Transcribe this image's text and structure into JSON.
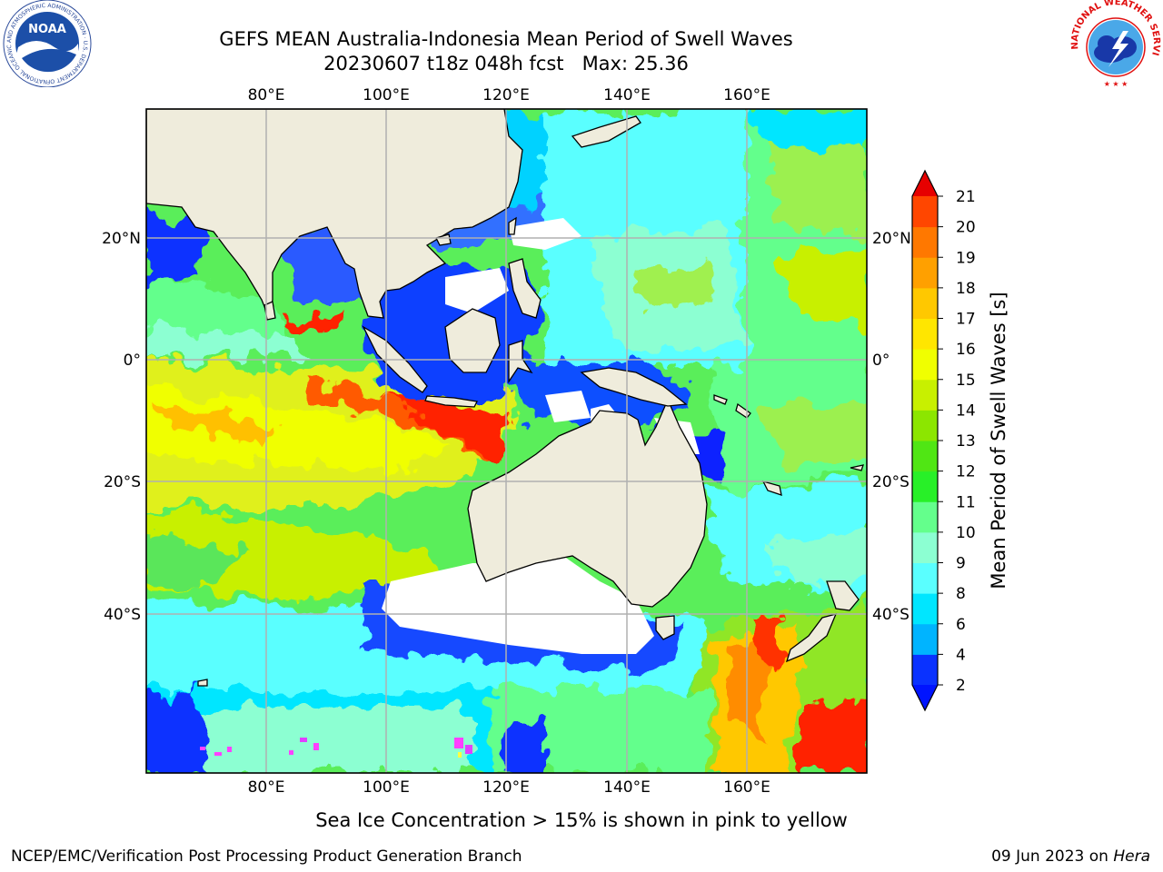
{
  "title": {
    "line1": "GEFS MEAN Australia-Indonesia Mean Period of Swell Waves",
    "line2": "20230607 t18z 048h fcst   Max: 25.36"
  },
  "map": {
    "lon_labels": [
      "80°E",
      "100°E",
      "120°E",
      "140°E",
      "160°E"
    ],
    "lat_labels": [
      "20°N",
      "0°",
      "20°S",
      "40°S"
    ],
    "lon_range": [
      60,
      180
    ],
    "lat_range": [
      -68,
      41
    ],
    "gridlines": true
  },
  "colorbar": {
    "label": "Mean Period of Swell Waves [s]",
    "ticks": [
      "2",
      "4",
      "6",
      "8",
      "9",
      "10",
      "11",
      "12",
      "13",
      "14",
      "15",
      "16",
      "17",
      "18",
      "19",
      "20",
      "21"
    ],
    "colors": [
      "#0a32ff",
      "#00b4ff",
      "#00e6ff",
      "#5affff",
      "#8cffd2",
      "#64ff8c",
      "#28f028",
      "#50e614",
      "#8ce600",
      "#c8f000",
      "#f0ff00",
      "#ffe600",
      "#ffc800",
      "#ffa000",
      "#ff7800",
      "#ff4600",
      "#ff1400"
    ],
    "under_color": "#0014ff",
    "over_color": "#e60000"
  },
  "logos": {
    "noaa_text": "NOAA",
    "noaa_ring": "NATIONAL OCEANIC AND ATMOSPHERIC ADMINISTRATION · U.S. DEPARTMENT OF COMMERCE",
    "nws_ring": "NATIONAL WEATHER SERVICE"
  },
  "footer": {
    "note": "Sea Ice Concentration > 15% is shown in pink to yellow",
    "left": "NCEP/EMC/Verification Post Processing Product Generation Branch",
    "right_date": "09 Jun 2023 on ",
    "right_host": "Hera"
  }
}
